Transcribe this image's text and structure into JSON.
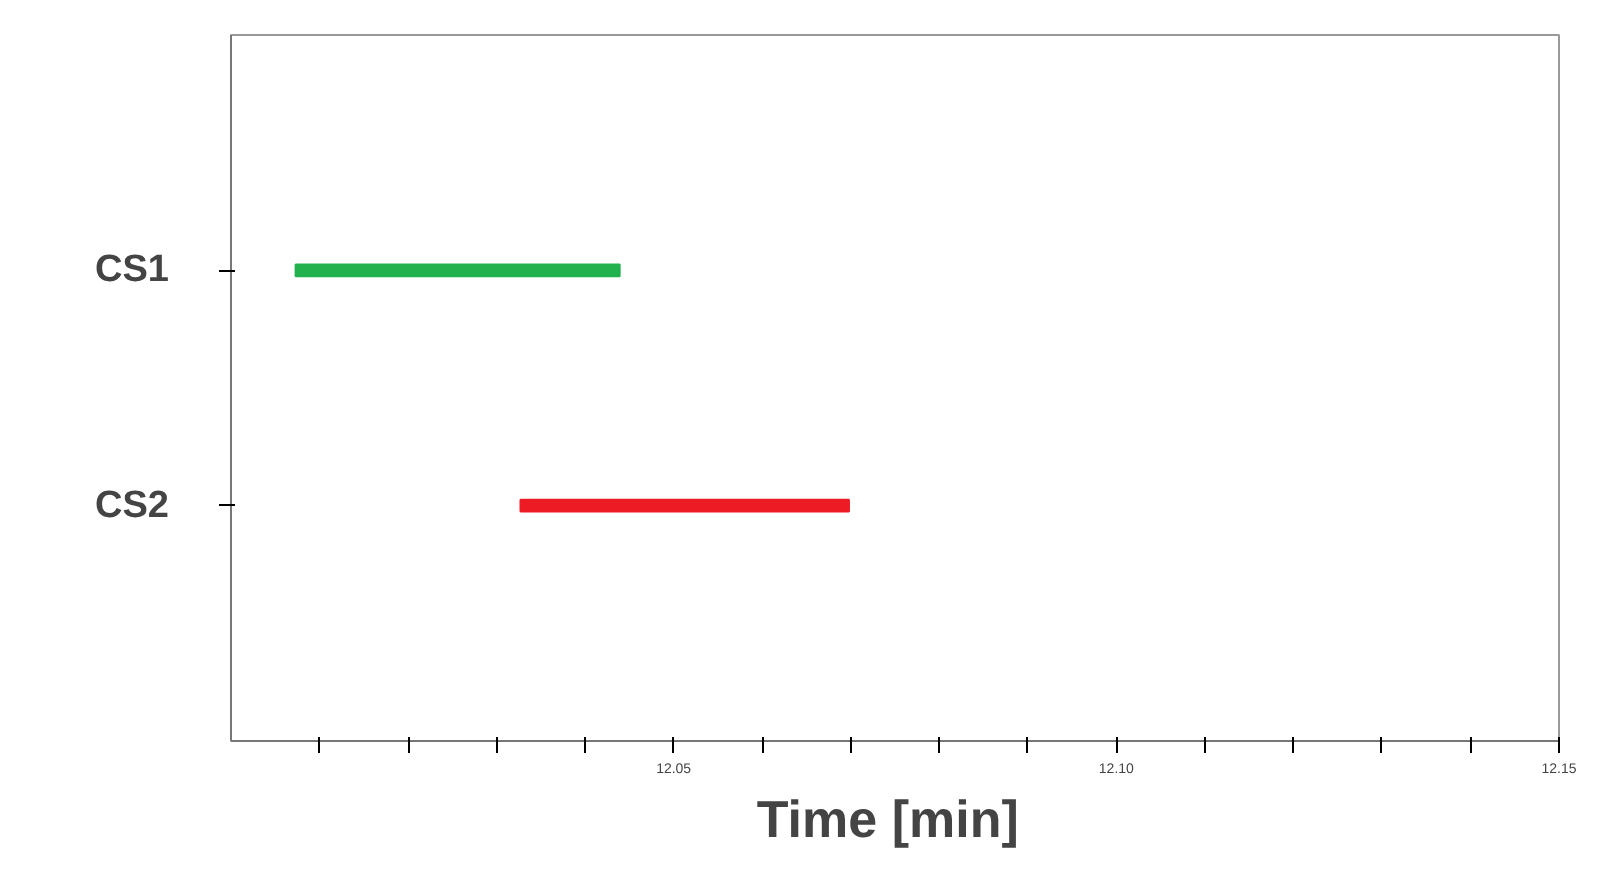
{
  "chart_data": {
    "type": "bar",
    "orientation": "horizontal",
    "xlabel": "Time  [min]",
    "categories": [
      "CS1",
      "CS2"
    ],
    "base": [
      12.0073,
      12.0327
    ],
    "values": [
      0.0366,
      0.0371
    ],
    "colors": [
      "#22b14c",
      "#ed1c24"
    ],
    "xlim": [
      12.0,
      12.15
    ],
    "xticks": [
      {
        "value": 12.01,
        "label": null
      },
      {
        "value": 12.02,
        "label": null
      },
      {
        "value": 12.03,
        "label": null
      },
      {
        "value": 12.04,
        "label": null
      },
      {
        "value": 12.05,
        "label": "12.05"
      },
      {
        "value": 12.06,
        "label": null
      },
      {
        "value": 12.07,
        "label": null
      },
      {
        "value": 12.08,
        "label": null
      },
      {
        "value": 12.09,
        "label": null
      },
      {
        "value": 12.1,
        "label": "12.10"
      },
      {
        "value": 12.11,
        "label": null
      },
      {
        "value": 12.12,
        "label": null
      },
      {
        "value": 12.13,
        "label": null
      },
      {
        "value": 12.14,
        "label": null
      },
      {
        "value": 12.15,
        "label": "12.15"
      }
    ],
    "grid": false
  }
}
